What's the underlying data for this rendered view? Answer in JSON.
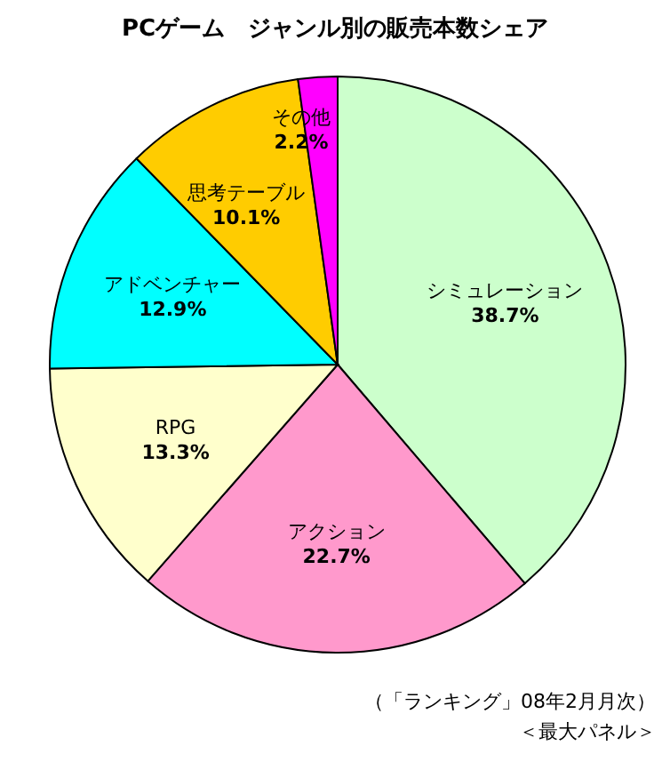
{
  "chart_data": {
    "type": "pie",
    "title": "PCゲーム　ジャンル別の販売本数シェア",
    "categories": [
      "シミュレーション",
      "アクション",
      "RPG",
      "アドベンチャー",
      "思考テーブル",
      "その他"
    ],
    "values": [
      38.7,
      22.7,
      13.3,
      12.9,
      10.1,
      2.2
    ],
    "colors": [
      "#ccffcc",
      "#ff99cc",
      "#ffffcc",
      "#00ffff",
      "#ffcc00",
      "#ff00ff"
    ],
    "value_labels": [
      "38.7%",
      "22.7%",
      "13.3%",
      "12.9%",
      "10.1%",
      "2.2%"
    ],
    "annotations": [
      "（「ランキング」08年2月月次）",
      "＜最大パネル＞"
    ]
  }
}
